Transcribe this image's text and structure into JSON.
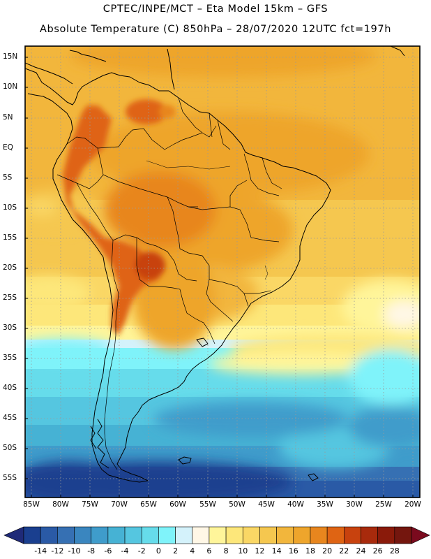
{
  "header": {
    "title_line1": "CPTEC/INPE/MCT –  Eta Model 15km – GFS",
    "title_line2": "Absolute Temperature (C) 850hPa – 28/07/2020 12UTC fct=197h"
  },
  "axes": {
    "latitude_labels": [
      "15N",
      "10N",
      "5N",
      "EQ",
      "5S",
      "10S",
      "15S",
      "20S",
      "25S",
      "30S",
      "35S",
      "40S",
      "45S",
      "50S",
      "55S"
    ],
    "longitude_labels": [
      "85W",
      "80W",
      "75W",
      "70W",
      "65W",
      "60W",
      "55W",
      "50W",
      "45W",
      "40W",
      "35W",
      "30W",
      "25W",
      "20W"
    ]
  },
  "colorbar": {
    "labels": [
      "-14",
      "-12",
      "-10",
      "-8",
      "-6",
      "-4",
      "-2",
      "0",
      "2",
      "4",
      "6",
      "8",
      "10",
      "12",
      "14",
      "16",
      "18",
      "20",
      "22",
      "24",
      "26",
      "28"
    ],
    "colors": [
      "#1a3f8f",
      "#2a5aa6",
      "#3670b3",
      "#3a86bf",
      "#3f9ccb",
      "#46b2d4",
      "#55c6e0",
      "#66dceb",
      "#7ff3fa",
      "#d4f2fb",
      "#fff7e6",
      "#fff59a",
      "#fde77a",
      "#fad765",
      "#f5c74f",
      "#f2b63c",
      "#eea52c",
      "#e8861e",
      "#df6413",
      "#c8420e",
      "#a82a0c",
      "#8a1a0a",
      "#74160e"
    ],
    "low_arrow_color": "#1f2a78",
    "high_arrow_color": "#7a0a1e"
  }
}
